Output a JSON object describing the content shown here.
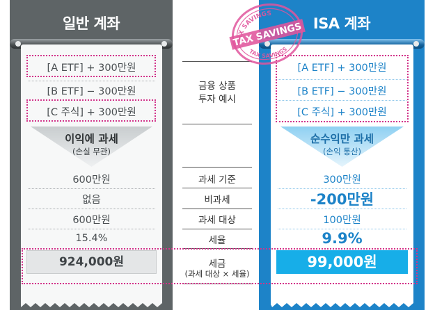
{
  "left": {
    "title": "일반 계좌",
    "items": [
      "[A ETF] + 300만원",
      "[B ETF] − 300만원",
      "[C 주식] + 300만원"
    ],
    "arrow_title": "이익에 과세",
    "arrow_sub": "(손실 무관)",
    "rows": [
      "600만원",
      "없음",
      "600만원",
      "15.4%"
    ],
    "result": "924,000원"
  },
  "middle": {
    "example_line1": "금융 상품",
    "example_line2": "투자 예시",
    "labels": [
      "과세 기준",
      "비과세",
      "과세 대상",
      "세율"
    ],
    "tax_line1": "세금",
    "tax_line2": "(과세 대상 × 세율)"
  },
  "right": {
    "title": "ISA 계좌",
    "items": [
      "[A ETF] + 300만원",
      "[B ETF] − 300만원",
      "[C 주식] + 300만원"
    ],
    "arrow_title": "순수익만 과세",
    "arrow_sub": "(손익 통산)",
    "rows": [
      "300만원",
      "-200만원",
      "100만원",
      "9.9%"
    ],
    "result": "99,000원"
  },
  "stamp": {
    "top_text": "TAX SAVINGS",
    "main_text": "TAX SAVINGS",
    "bottom_text": "TAX SAVINGS"
  },
  "colors": {
    "left_header": "#5e6466",
    "right_header": "#1d83c8",
    "accent_blue": "#17aee8",
    "dotted_pink": "#d2348a",
    "stamp_pink": "#e0559c"
  }
}
